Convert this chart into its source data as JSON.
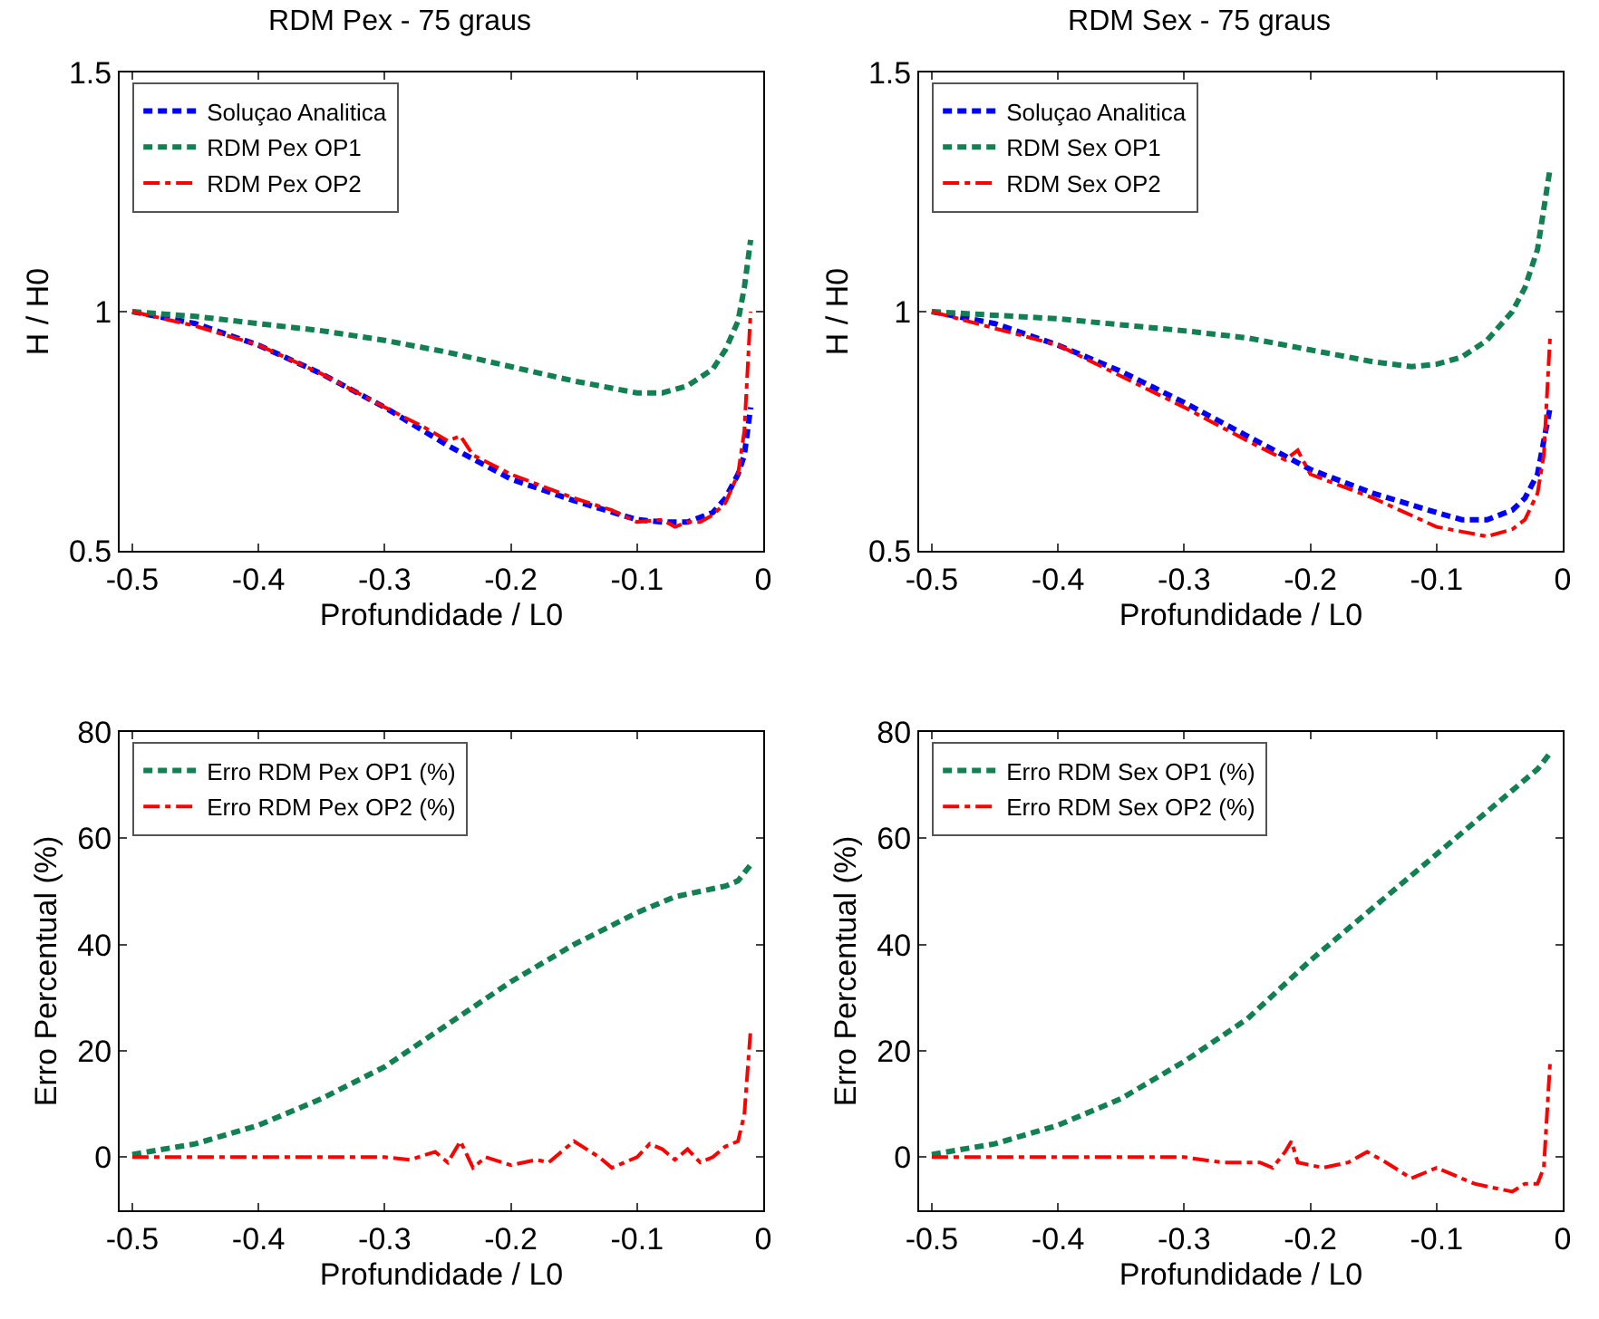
{
  "chart_data": [
    {
      "type": "line",
      "title": "RDM Pex - 75 graus",
      "xlabel": "Profundidade / L0",
      "ylabel": "H / H0",
      "xlim": [
        -0.51,
        0
      ],
      "xticks": [
        -0.5,
        -0.4,
        -0.3,
        -0.2,
        -0.1,
        0
      ],
      "ylim": [
        0.5,
        1.5
      ],
      "yticks": [
        0.5,
        1,
        1.5
      ],
      "grid": false,
      "legend": "top left",
      "marker": "none",
      "series": [
        {
          "name": "Soluçao Analitica",
          "color": "#0000ff",
          "line_style": "dashed",
          "x": [
            -0.5,
            -0.45,
            -0.4,
            -0.35,
            -0.3,
            -0.25,
            -0.2,
            -0.15,
            -0.1,
            -0.08,
            -0.06,
            -0.04,
            -0.03,
            -0.02,
            -0.015,
            -0.01
          ],
          "values": [
            1.0,
            0.975,
            0.93,
            0.87,
            0.8,
            0.72,
            0.65,
            0.605,
            0.565,
            0.56,
            0.56,
            0.58,
            0.61,
            0.66,
            0.7,
            0.8
          ]
        },
        {
          "name": "RDM Pex OP1",
          "color": "#128052",
          "line_style": "dashed",
          "x": [
            -0.5,
            -0.45,
            -0.4,
            -0.35,
            -0.3,
            -0.25,
            -0.2,
            -0.15,
            -0.1,
            -0.08,
            -0.06,
            -0.04,
            -0.03,
            -0.02,
            -0.015,
            -0.01
          ],
          "values": [
            1.0,
            0.99,
            0.975,
            0.96,
            0.94,
            0.915,
            0.885,
            0.855,
            0.83,
            0.83,
            0.845,
            0.88,
            0.92,
            0.98,
            1.05,
            1.15
          ]
        },
        {
          "name": "RDM Pex OP2",
          "color": "#ff0000",
          "line_style": "dashdot",
          "x": [
            -0.5,
            -0.45,
            -0.4,
            -0.35,
            -0.3,
            -0.27,
            -0.25,
            -0.24,
            -0.23,
            -0.2,
            -0.15,
            -0.12,
            -0.1,
            -0.08,
            -0.07,
            -0.06,
            -0.05,
            -0.04,
            -0.03,
            -0.02,
            -0.015,
            -0.01
          ],
          "values": [
            1.0,
            0.97,
            0.93,
            0.87,
            0.8,
            0.76,
            0.73,
            0.74,
            0.7,
            0.66,
            0.61,
            0.585,
            0.56,
            0.565,
            0.55,
            0.56,
            0.56,
            0.575,
            0.6,
            0.66,
            0.75,
            1.0
          ]
        }
      ]
    },
    {
      "type": "line",
      "title": "RDM Sex - 75 graus",
      "xlabel": "Profundidade / L0",
      "ylabel": "H / H0",
      "xlim": [
        -0.51,
        0
      ],
      "xticks": [
        -0.5,
        -0.4,
        -0.3,
        -0.2,
        -0.1,
        0
      ],
      "ylim": [
        0.5,
        1.5
      ],
      "yticks": [
        0.5,
        1,
        1.5
      ],
      "grid": false,
      "legend": "top left",
      "marker": "none",
      "series": [
        {
          "name": "Soluçao Analitica",
          "color": "#0000ff",
          "line_style": "dashed",
          "x": [
            -0.5,
            -0.45,
            -0.4,
            -0.35,
            -0.3,
            -0.25,
            -0.2,
            -0.15,
            -0.1,
            -0.08,
            -0.06,
            -0.04,
            -0.03,
            -0.02,
            -0.01
          ],
          "values": [
            1.0,
            0.975,
            0.93,
            0.875,
            0.81,
            0.74,
            0.67,
            0.62,
            0.58,
            0.565,
            0.565,
            0.585,
            0.61,
            0.66,
            0.8
          ]
        },
        {
          "name": "RDM Sex OP1",
          "color": "#128052",
          "line_style": "dashed",
          "x": [
            -0.5,
            -0.4,
            -0.3,
            -0.25,
            -0.2,
            -0.15,
            -0.12,
            -0.1,
            -0.08,
            -0.06,
            -0.04,
            -0.03,
            -0.02,
            -0.01
          ],
          "values": [
            1.0,
            0.985,
            0.96,
            0.945,
            0.92,
            0.895,
            0.885,
            0.89,
            0.905,
            0.94,
            1.0,
            1.05,
            1.13,
            1.3
          ]
        },
        {
          "name": "RDM Sex OP2",
          "color": "#ff0000",
          "line_style": "dashdot",
          "x": [
            -0.5,
            -0.4,
            -0.3,
            -0.25,
            -0.22,
            -0.21,
            -0.2,
            -0.15,
            -0.1,
            -0.08,
            -0.06,
            -0.04,
            -0.03,
            -0.02,
            -0.015,
            -0.01
          ],
          "values": [
            1.0,
            0.93,
            0.8,
            0.73,
            0.69,
            0.71,
            0.66,
            0.61,
            0.55,
            0.54,
            0.53,
            0.545,
            0.565,
            0.62,
            0.7,
            0.95
          ]
        }
      ]
    },
    {
      "type": "line",
      "xlabel": "Profundidade / L0",
      "ylabel": "Erro Percentual (%)",
      "xlim": [
        -0.51,
        0
      ],
      "xticks": [
        -0.5,
        -0.4,
        -0.3,
        -0.2,
        -0.1,
        0
      ],
      "ylim": [
        -10,
        80
      ],
      "yticks": [
        0,
        20,
        40,
        60,
        80
      ],
      "grid": false,
      "legend": "top left",
      "marker": "none",
      "series": [
        {
          "name": "Erro RDM Pex OP1 (%)",
          "color": "#128052",
          "line_style": "dashed",
          "x": [
            -0.5,
            -0.45,
            -0.4,
            -0.35,
            -0.3,
            -0.25,
            -0.2,
            -0.15,
            -0.1,
            -0.07,
            -0.05,
            -0.03,
            -0.02,
            -0.01
          ],
          "values": [
            0.5,
            2.5,
            6,
            11,
            17,
            25,
            33,
            40,
            46,
            49,
            50,
            51,
            52,
            55
          ]
        },
        {
          "name": "Erro RDM Pex OP2 (%)",
          "color": "#ff0000",
          "line_style": "dashdot",
          "x": [
            -0.5,
            -0.3,
            -0.28,
            -0.26,
            -0.25,
            -0.24,
            -0.23,
            -0.22,
            -0.2,
            -0.18,
            -0.17,
            -0.15,
            -0.13,
            -0.12,
            -0.1,
            -0.09,
            -0.08,
            -0.07,
            -0.06,
            -0.05,
            -0.04,
            -0.03,
            -0.02,
            -0.015,
            -0.01
          ],
          "values": [
            0,
            0,
            -0.5,
            1,
            -1,
            3,
            -2,
            0,
            -1.5,
            -0.5,
            -1,
            3,
            0,
            -2,
            0,
            2.5,
            1.5,
            -0.5,
            1.5,
            -1,
            0,
            2,
            3,
            8,
            24
          ]
        }
      ]
    },
    {
      "type": "line",
      "xlabel": "Profundidade / L0",
      "ylabel": "Erro Percentual (%)",
      "xlim": [
        -0.51,
        0
      ],
      "xticks": [
        -0.5,
        -0.4,
        -0.3,
        -0.2,
        -0.1,
        0
      ],
      "ylim": [
        -10,
        80
      ],
      "yticks": [
        0,
        20,
        40,
        60,
        80
      ],
      "grid": false,
      "legend": "top left",
      "marker": "none",
      "series": [
        {
          "name": "Erro RDM Sex OP1 (%)",
          "color": "#128052",
          "line_style": "dashed",
          "x": [
            -0.5,
            -0.45,
            -0.4,
            -0.35,
            -0.3,
            -0.25,
            -0.2,
            -0.15,
            -0.1,
            -0.05,
            -0.02,
            -0.01
          ],
          "values": [
            0.5,
            2.5,
            6,
            11,
            18,
            26,
            37,
            47,
            57,
            67,
            73,
            76
          ]
        },
        {
          "name": "Erro RDM Sex OP2 (%)",
          "color": "#ff0000",
          "line_style": "dashdot",
          "x": [
            -0.5,
            -0.3,
            -0.27,
            -0.24,
            -0.23,
            -0.22,
            -0.215,
            -0.21,
            -0.19,
            -0.17,
            -0.155,
            -0.14,
            -0.12,
            -0.1,
            -0.09,
            -0.07,
            -0.05,
            -0.04,
            -0.03,
            -0.02,
            -0.015,
            -0.01
          ],
          "values": [
            0,
            0,
            -1,
            -1,
            -2,
            1,
            3,
            -1,
            -2,
            -1,
            1,
            -1,
            -4,
            -2,
            -3,
            -5,
            -6,
            -6.5,
            -5,
            -5,
            -2,
            18
          ]
        }
      ]
    }
  ]
}
